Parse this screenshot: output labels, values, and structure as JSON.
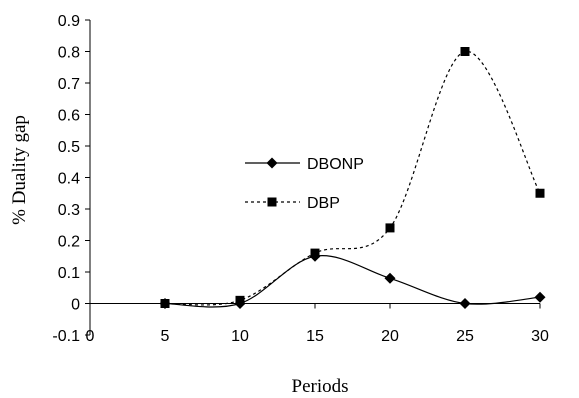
{
  "chart_data": {
    "type": "line",
    "title": "",
    "xlabel": "Periods",
    "ylabel": "% Duality gap",
    "xlim": [
      0,
      30
    ],
    "ylim": [
      -0.1,
      0.9
    ],
    "x_ticks": [
      "0",
      "5",
      "10",
      "15",
      "20",
      "25",
      "30"
    ],
    "y_ticks": [
      "-0.1",
      "0",
      "0.1",
      "0.2",
      "0.3",
      "0.4",
      "0.5",
      "0.6",
      "0.7",
      "0.8",
      "0.9"
    ],
    "grid": false,
    "legend_position": "center-left",
    "series": [
      {
        "name": "DBONP",
        "marker": "diamond",
        "line_style": "solid",
        "color": "#000000",
        "x": [
          5,
          10,
          15,
          20,
          25,
          30
        ],
        "values": [
          0,
          0,
          0.15,
          0.08,
          0,
          0.02
        ]
      },
      {
        "name": "DBP",
        "marker": "square",
        "line_style": "dashed",
        "color": "#000000",
        "x": [
          5,
          10,
          15,
          20,
          25,
          30
        ],
        "values": [
          0,
          0.01,
          0.16,
          0.24,
          0.8,
          0.35
        ]
      }
    ]
  }
}
